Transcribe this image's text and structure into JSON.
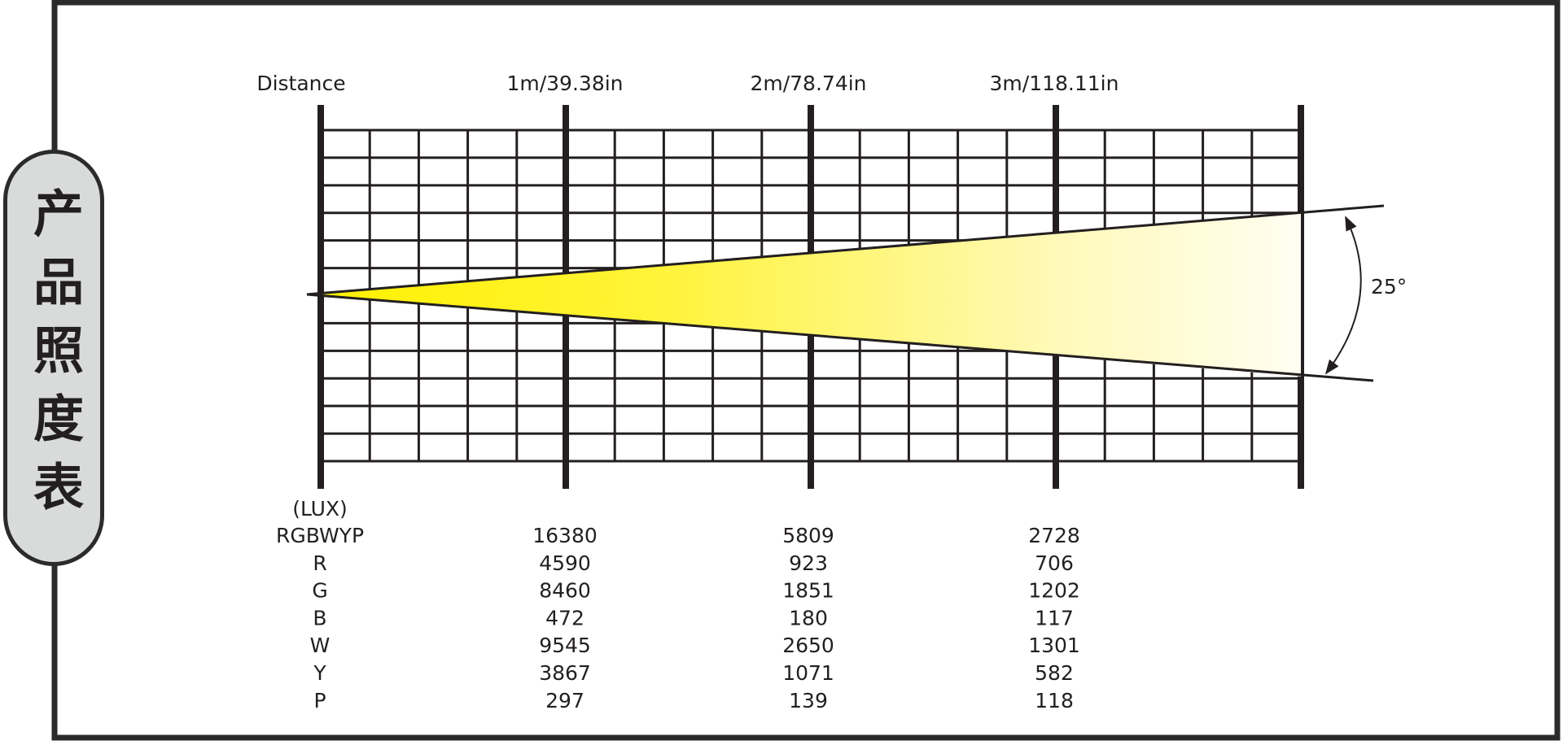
{
  "side_label": "产品照度表",
  "distance_label": "Distance",
  "distances": [
    "1m/39.38in",
    "2m/78.74in",
    "3m/118.11in"
  ],
  "beam_angle": "25°",
  "unit": "(LUX)",
  "rows": [
    {
      "name": "RGBWYP",
      "values": [
        16380,
        5809,
        2728
      ]
    },
    {
      "name": "R",
      "values": [
        4590,
        923,
        706
      ]
    },
    {
      "name": "G",
      "values": [
        8460,
        1851,
        1202
      ]
    },
    {
      "name": "B",
      "values": [
        472,
        180,
        117
      ]
    },
    {
      "name": "W",
      "values": [
        9545,
        2650,
        1301
      ]
    },
    {
      "name": "Y",
      "values": [
        3867,
        1071,
        582
      ]
    },
    {
      "name": "P",
      "values": [
        297,
        139,
        118
      ]
    }
  ]
}
